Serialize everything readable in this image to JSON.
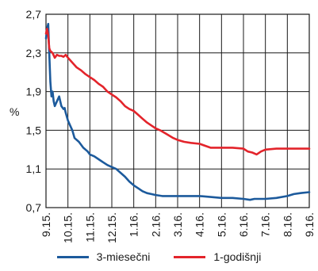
{
  "chart_data": {
    "type": "line",
    "ylabel": "%",
    "y_ticks": [
      "2,7",
      "2,3",
      "1,9",
      "1,5",
      "1,1",
      "0,7"
    ],
    "y_tick_values": [
      2.7,
      2.3,
      1.9,
      1.5,
      1.1,
      0.7
    ],
    "ylim": [
      0.7,
      2.7
    ],
    "x_ticks": [
      "9.15.",
      "10.15.",
      "11.15.",
      "12.15.",
      "1.16.",
      "2.16.",
      "3.16.",
      "4.16.",
      "5.16.",
      "6.16.",
      "7.16.",
      "8.16.",
      "9.16."
    ],
    "x_tick_values": [
      0,
      1,
      2,
      3,
      4,
      5,
      6,
      7,
      8,
      9,
      10,
      11,
      12
    ],
    "xlim": [
      0,
      12
    ],
    "grid": true,
    "legend_position": "bottom",
    "series": [
      {
        "name": "3-miesečni",
        "color": "#1c5a9c",
        "x": [
          0,
          0.05,
          0.1,
          0.15,
          0.2,
          0.25,
          0.3,
          0.35,
          0.4,
          0.5,
          0.6,
          0.7,
          0.8,
          0.85,
          0.9,
          1.0,
          1.1,
          1.2,
          1.3,
          1.5,
          1.7,
          1.9,
          2.0,
          2.2,
          2.4,
          2.6,
          2.8,
          3.0,
          3.2,
          3.4,
          3.6,
          3.8,
          4.0,
          4.2,
          4.4,
          4.6,
          4.8,
          5.0,
          5.3,
          5.6,
          6.0,
          6.5,
          7.0,
          7.5,
          8.0,
          8.5,
          9.0,
          9.3,
          9.5,
          10.0,
          10.5,
          11.0,
          11.3,
          11.6,
          12.0
        ],
        "values": [
          2.45,
          2.55,
          2.6,
          2.3,
          2.0,
          1.85,
          1.9,
          1.8,
          1.75,
          1.8,
          1.85,
          1.75,
          1.72,
          1.73,
          1.68,
          1.6,
          1.55,
          1.5,
          1.42,
          1.38,
          1.32,
          1.28,
          1.25,
          1.23,
          1.2,
          1.17,
          1.14,
          1.12,
          1.1,
          1.06,
          1.02,
          0.97,
          0.93,
          0.9,
          0.87,
          0.85,
          0.84,
          0.83,
          0.82,
          0.82,
          0.82,
          0.82,
          0.82,
          0.81,
          0.8,
          0.8,
          0.79,
          0.78,
          0.79,
          0.79,
          0.8,
          0.82,
          0.84,
          0.85,
          0.86
        ]
      },
      {
        "name": "1-godišnji",
        "color": "#e3242b",
        "x": [
          0,
          0.05,
          0.1,
          0.15,
          0.2,
          0.3,
          0.4,
          0.5,
          0.6,
          0.7,
          0.8,
          0.9,
          1.0,
          1.2,
          1.4,
          1.6,
          1.8,
          2.0,
          2.2,
          2.4,
          2.6,
          2.8,
          3.0,
          3.2,
          3.4,
          3.6,
          3.8,
          4.0,
          4.2,
          4.4,
          4.6,
          4.8,
          5.0,
          5.2,
          5.5,
          5.8,
          6.0,
          6.3,
          6.6,
          7.0,
          7.5,
          8.0,
          8.5,
          9.0,
          9.2,
          9.4,
          9.6,
          9.8,
          10.0,
          10.5,
          11.0,
          11.5,
          12.0
        ],
        "values": [
          2.5,
          2.55,
          2.48,
          2.35,
          2.32,
          2.3,
          2.25,
          2.28,
          2.27,
          2.27,
          2.26,
          2.28,
          2.25,
          2.2,
          2.15,
          2.12,
          2.08,
          2.05,
          2.02,
          1.98,
          1.95,
          1.9,
          1.87,
          1.84,
          1.8,
          1.75,
          1.72,
          1.7,
          1.66,
          1.62,
          1.58,
          1.55,
          1.52,
          1.5,
          1.46,
          1.42,
          1.4,
          1.38,
          1.37,
          1.36,
          1.32,
          1.32,
          1.32,
          1.31,
          1.28,
          1.27,
          1.25,
          1.28,
          1.3,
          1.31,
          1.31,
          1.31,
          1.31
        ]
      }
    ]
  }
}
